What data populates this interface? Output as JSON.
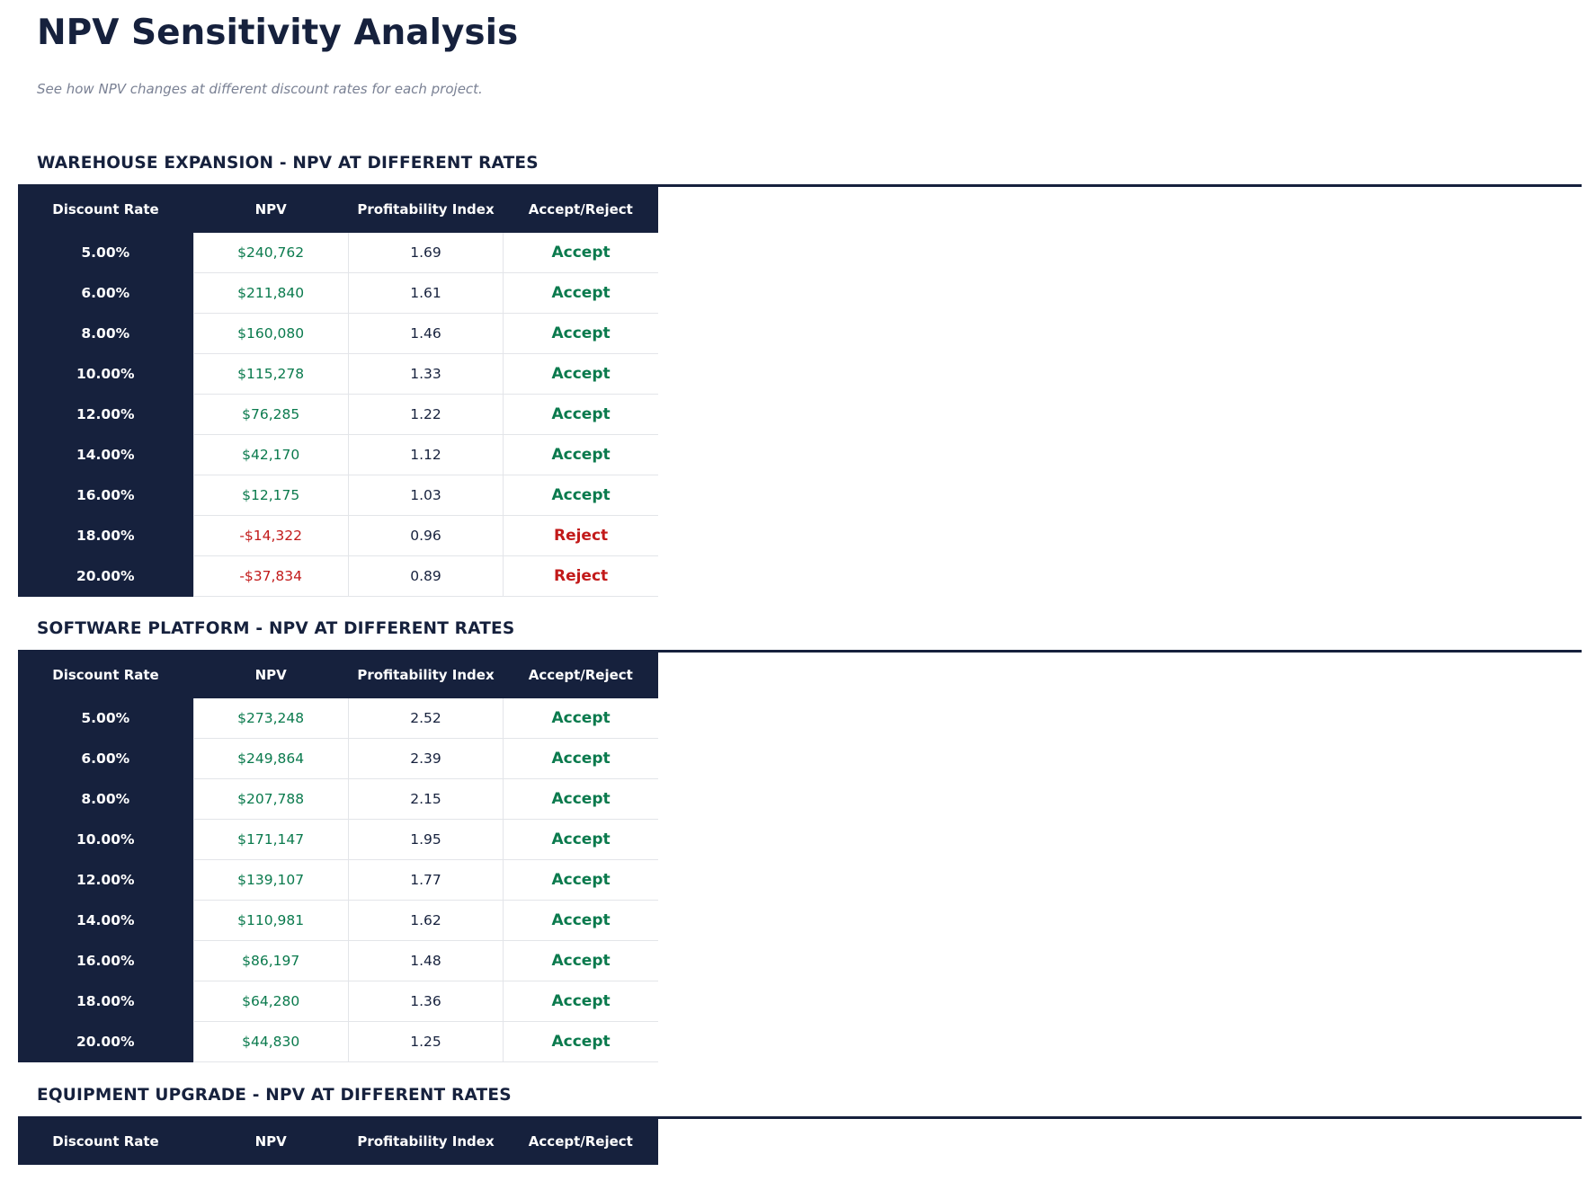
{
  "title": "NPV Sensitivity Analysis",
  "subtitle": "See how NPV changes at different discount rates for each project.",
  "headers": [
    "Discount Rate",
    "NPV",
    "Profitability Index",
    "Accept/Reject"
  ],
  "sections": [
    {
      "title": "WAREHOUSE EXPANSION - NPV AT DIFFERENT RATES",
      "rows": [
        [
          "5.00%",
          "$240,762",
          "1.69",
          "Accept"
        ],
        [
          "6.00%",
          "$211,840",
          "1.61",
          "Accept"
        ],
        [
          "8.00%",
          "$160,080",
          "1.46",
          "Accept"
        ],
        [
          "10.00%",
          "$115,278",
          "1.33",
          "Accept"
        ],
        [
          "12.00%",
          "$76,285",
          "1.22",
          "Accept"
        ],
        [
          "14.00%",
          "$42,170",
          "1.12",
          "Accept"
        ],
        [
          "16.00%",
          "$12,175",
          "1.03",
          "Accept"
        ],
        [
          "18.00%",
          "-$14,322",
          "0.96",
          "Reject"
        ],
        [
          "20.00%",
          "-$37,834",
          "0.89",
          "Reject"
        ]
      ]
    },
    {
      "title": "SOFTWARE PLATFORM - NPV AT DIFFERENT RATES",
      "rows": [
        [
          "5.00%",
          "$273,248",
          "2.52",
          "Accept"
        ],
        [
          "6.00%",
          "$249,864",
          "2.39",
          "Accept"
        ],
        [
          "8.00%",
          "$207,788",
          "2.15",
          "Accept"
        ],
        [
          "10.00%",
          "$171,147",
          "1.95",
          "Accept"
        ],
        [
          "12.00%",
          "$139,107",
          "1.77",
          "Accept"
        ],
        [
          "14.00%",
          "$110,981",
          "1.62",
          "Accept"
        ],
        [
          "16.00%",
          "$86,197",
          "1.48",
          "Accept"
        ],
        [
          "18.00%",
          "$64,280",
          "1.36",
          "Accept"
        ],
        [
          "20.00%",
          "$44,830",
          "1.25",
          "Accept"
        ]
      ]
    },
    {
      "title": "EQUIPMENT UPGRADE - NPV AT DIFFERENT RATES",
      "rows": []
    }
  ]
}
